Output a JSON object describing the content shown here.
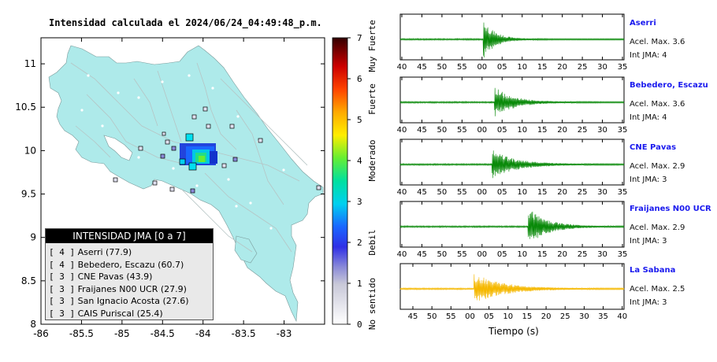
{
  "map": {
    "title": "Intensidad calculada el 2024/06/24_04:49:48_p.m.",
    "lon_ticks": [
      "-86",
      "-85.5",
      "-85",
      "-84.5",
      "-84",
      "-83.5",
      "-83"
    ],
    "lat_ticks": [
      "11",
      "10.5",
      "10",
      "9.5",
      "9",
      "8.5",
      "8"
    ],
    "lon_range": [
      -86,
      -82.5
    ],
    "lat_range": [
      8,
      11.3
    ],
    "colors": {
      "sea": "#ffffff",
      "land": "#aeeaea"
    }
  },
  "colorbar": {
    "ticks": [
      "0",
      "1",
      "2",
      "3",
      "4",
      "5",
      "6",
      "7"
    ],
    "labels": [
      "No sentido",
      "Debil",
      "Moderado",
      "Fuerte",
      "Muy Fuerte"
    ]
  },
  "legend": {
    "title": "INTENSIDAD JMA [0 a 7]",
    "items": [
      {
        "level": "[ 4 ]",
        "text": "Aserri (77.9)"
      },
      {
        "level": "[ 4 ]",
        "text": "Bebedero, Escazu (60.7)"
      },
      {
        "level": "[ 3 ]",
        "text": "CNE Pavas (43.9)"
      },
      {
        "level": "[ 3 ]",
        "text": "Fraijanes N00 UCR (27.9)"
      },
      {
        "level": "[ 3 ]",
        "text": "San Ignacio Acosta (27.6)"
      },
      {
        "level": "[ 3 ]",
        "text": "CAIS Puriscal (25.4)"
      }
    ]
  },
  "stations": [
    {
      "name": "Aserri",
      "accel": "Acel. Max. 3.6",
      "jma": "Int JMA: 4",
      "color": "#0a8a0a",
      "ticks": [
        "40",
        "45",
        "50",
        "55",
        "00",
        "05",
        "10",
        "15",
        "20",
        "25",
        "30",
        "35"
      ]
    },
    {
      "name": "Bebedero, Escazu",
      "accel": "Acel. Max. 3.6",
      "jma": "Int JMA: 4",
      "color": "#0a8a0a",
      "ticks": [
        "40",
        "45",
        "50",
        "55",
        "00",
        "05",
        "10",
        "15",
        "20",
        "25",
        "30",
        "35"
      ]
    },
    {
      "name": "CNE Pavas",
      "accel": "Acel. Max. 2.9",
      "jma": "Int JMA: 3",
      "color": "#0a8a0a",
      "ticks": [
        "40",
        "45",
        "50",
        "55",
        "00",
        "05",
        "10",
        "15",
        "20",
        "25",
        "30",
        "35"
      ]
    },
    {
      "name": "Fraijanes N00 UCR",
      "accel": "Acel. Max. 2.9",
      "jma": "Int JMA: 3",
      "color": "#0a8a0a",
      "ticks": [
        "40",
        "45",
        "50",
        "55",
        "00",
        "05",
        "10",
        "15",
        "20",
        "25",
        "30",
        "35"
      ]
    },
    {
      "name": "La Sabana",
      "accel": "Acel. Max. 2.5",
      "jma": "Int JMA: 3",
      "color": "#f5b800",
      "ticks": [
        "45",
        "50",
        "55",
        "00",
        "05",
        "10",
        "15",
        "20",
        "25",
        "30",
        "35",
        "40"
      ]
    }
  ],
  "wave_xlabel": "Tiempo (s)",
  "chart_data": [
    {
      "type": "heatmap",
      "title": "Intensidad calculada el 2024/06/24_04:49:48_p.m.",
      "x_ticks": [
        -86,
        -85.5,
        -85,
        -84.5,
        -84,
        -83.5,
        -83
      ],
      "y_ticks": [
        8,
        8.5,
        9,
        9.5,
        10,
        10.5,
        11
      ],
      "colorbar_range": [
        0,
        7
      ],
      "colorbar_labels": [
        "No sentido",
        "Debil",
        "Moderado",
        "Fuerte",
        "Muy Fuerte"
      ]
    },
    {
      "type": "line",
      "xlabel": "Tiempo (s)",
      "series": [
        {
          "name": "Aserri",
          "values": [
            3.6
          ]
        },
        {
          "name": "Bebedero, Escazu",
          "values": [
            3.6
          ]
        },
        {
          "name": "CNE Pavas",
          "values": [
            2.9
          ]
        },
        {
          "name": "Fraijanes N00 UCR",
          "values": [
            2.9
          ]
        },
        {
          "name": "La Sabana",
          "values": [
            2.5
          ]
        }
      ]
    }
  ]
}
